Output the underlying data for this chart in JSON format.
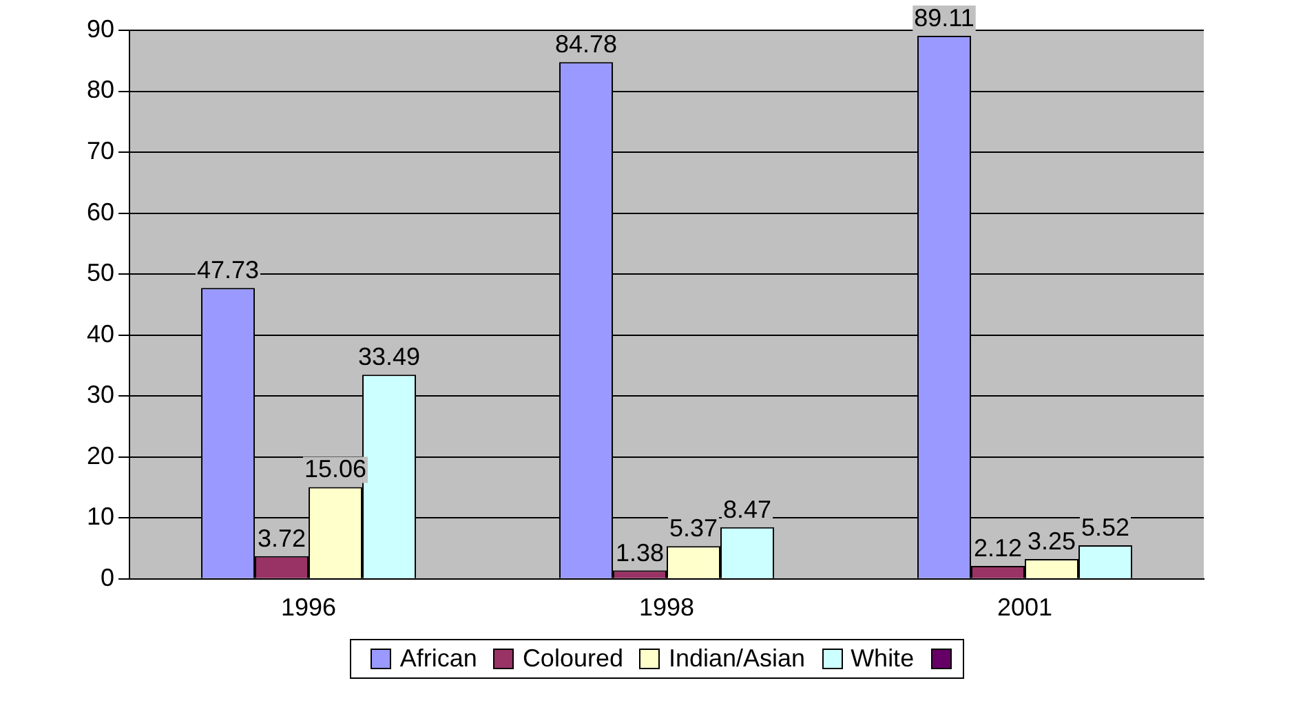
{
  "chart_data": {
    "type": "bar",
    "categories": [
      "1996",
      "1998",
      "2001"
    ],
    "series": [
      {
        "name": "African",
        "color": "#9999ff",
        "values": [
          47.73,
          84.78,
          89.11
        ]
      },
      {
        "name": "Coloured",
        "color": "#993366",
        "values": [
          3.72,
          1.38,
          2.12
        ]
      },
      {
        "name": "Indian/Asian",
        "color": "#ffffcc",
        "values": [
          15.06,
          5.37,
          3.25
        ]
      },
      {
        "name": "White",
        "color": "#ccffff",
        "values": [
          33.49,
          8.47,
          5.52
        ]
      }
    ],
    "ylim": [
      0,
      90
    ],
    "yticks": [
      0,
      10,
      20,
      30,
      40,
      50,
      60,
      70,
      80,
      90
    ],
    "grid": "y",
    "legend": "bottom",
    "data_labels": true
  }
}
